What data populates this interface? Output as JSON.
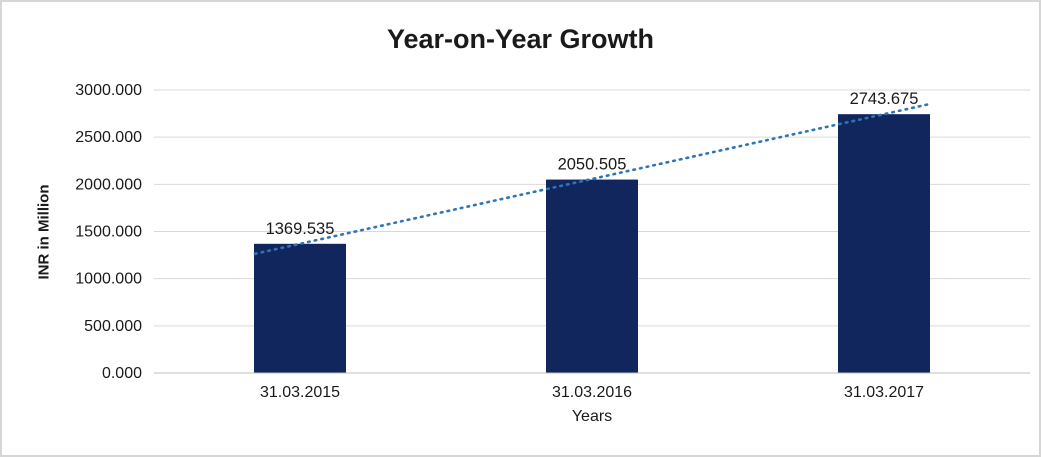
{
  "chart_data": {
    "type": "bar",
    "title": "Year-on-Year Growth",
    "xlabel": "Years",
    "ylabel": "INR in Million",
    "categories": [
      "31.03.2015",
      "31.03.2016",
      "31.03.2017"
    ],
    "values": [
      1369.535,
      2050.505,
      2743.675
    ],
    "data_labels": [
      "1369.535",
      "2050.505",
      "2743.675"
    ],
    "yticks": [
      0,
      500,
      1000,
      1500,
      2000,
      2500,
      3000
    ],
    "ytick_labels": [
      "0.000",
      "500.000",
      "1000.000",
      "1500.000",
      "2000.000",
      "2500.000",
      "3000.000"
    ],
    "ylim": [
      0,
      3000
    ],
    "grid": true,
    "legend_position": "none",
    "bar_color": "#12265E",
    "trendline_color": "#2E75B6",
    "trendline_style": "dotted",
    "gridline_color": "#d9d9d9",
    "axis_line_color": "#bfbfbf",
    "text_color": "#1a1a1a"
  }
}
